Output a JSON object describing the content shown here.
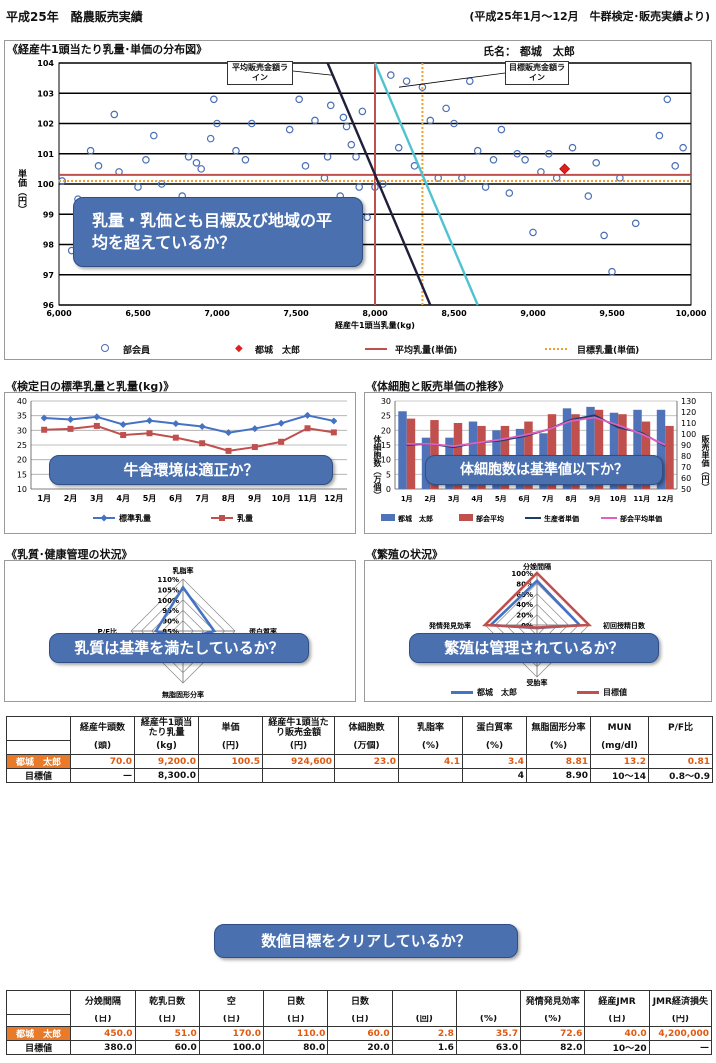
{
  "header": {
    "title": "平成25年　酪農販売実績",
    "source": "(平成25年1月～12月　牛群検定･販売実績より)"
  },
  "colors": {
    "callout_bg": "#4a70b0",
    "avg_line": "#c0504d",
    "target_line": "#f0a030",
    "avg_price_line": "#1f1f3a",
    "target_price_line": "#4fc3d0",
    "member_marker": "#4a6fb5",
    "user_marker": "#e02020",
    "user_row": "#e87a2a"
  },
  "scatter": {
    "heading": "《経産牛1頭当たり乳量･単価の分布図》",
    "name_label": "氏名：",
    "name_value": "都城　太郎",
    "ylabel": "単価（円）",
    "xlabel": "経産牛1頭当乳量(kg)",
    "callout": "乳量・乳価とも目標及び地域の平均を超えているか？",
    "annotation_avg": "平均販売金額ライン",
    "annotation_target": "目標販売金額ライン",
    "legend": {
      "members": "部会員",
      "user": "都城　太郎",
      "avg": "平均乳量(単価)",
      "target": "目標乳量(単価)"
    }
  },
  "chart_data": [
    {
      "type": "scatter",
      "title": "《経産牛1頭当たり乳量･単価の分布図》",
      "xlabel": "経産牛1頭当乳量(kg)",
      "ylabel": "単価（円）",
      "xlim": [
        6000,
        10000
      ],
      "ylim": [
        96,
        104
      ],
      "xticks": [
        "6,000",
        "6,500",
        "7,000",
        "7,500",
        "8,000",
        "8,500",
        "9,000",
        "9,500",
        "10,000"
      ],
      "yticks": [
        "96",
        "97",
        "98",
        "99",
        "100",
        "101",
        "102",
        "103",
        "104"
      ],
      "grid": true,
      "avg_milk_kg": 8000,
      "target_milk_kg": 8300,
      "avg_price_yen": 100.3,
      "target_price_yen": 100.1,
      "avg_revenue_line": [
        [
          7700,
          104
        ],
        [
          8350,
          96
        ]
      ],
      "target_revenue_line": [
        [
          8000,
          104
        ],
        [
          8650,
          96
        ]
      ],
      "user_point": [
        9200,
        100.5
      ],
      "members": [
        [
          6020,
          100.1
        ],
        [
          6080,
          97.8
        ],
        [
          6120,
          99.5
        ],
        [
          6200,
          101.1
        ],
        [
          6250,
          100.6
        ],
        [
          6300,
          98.3
        ],
        [
          6350,
          102.3
        ],
        [
          6380,
          100.4
        ],
        [
          6500,
          99.9
        ],
        [
          6550,
          100.8
        ],
        [
          6600,
          101.6
        ],
        [
          6650,
          100.0
        ],
        [
          6720,
          98.3
        ],
        [
          6780,
          99.6
        ],
        [
          6820,
          100.9
        ],
        [
          6870,
          100.7
        ],
        [
          6900,
          100.5
        ],
        [
          6960,
          101.5
        ],
        [
          6980,
          102.8
        ],
        [
          7000,
          102.0
        ],
        [
          7050,
          99.3
        ],
        [
          7120,
          101.1
        ],
        [
          7180,
          100.8
        ],
        [
          7220,
          102.0
        ],
        [
          7280,
          99.2
        ],
        [
          7350,
          98.4
        ],
        [
          7400,
          97.5
        ],
        [
          7460,
          101.8
        ],
        [
          7520,
          102.8
        ],
        [
          7560,
          100.6
        ],
        [
          7600,
          99.4
        ],
        [
          7620,
          102.1
        ],
        [
          7680,
          100.2
        ],
        [
          7700,
          100.9
        ],
        [
          7720,
          102.6
        ],
        [
          7780,
          99.6
        ],
        [
          7800,
          102.2
        ],
        [
          7820,
          101.9
        ],
        [
          7850,
          101.3
        ],
        [
          7880,
          100.9
        ],
        [
          7900,
          99.9
        ],
        [
          7920,
          102.4
        ],
        [
          7950,
          98.9
        ],
        [
          8000,
          99.9
        ],
        [
          8050,
          100.0
        ],
        [
          8100,
          103.6
        ],
        [
          8150,
          101.2
        ],
        [
          8200,
          103.4
        ],
        [
          8250,
          100.6
        ],
        [
          8300,
          103.2
        ],
        [
          8350,
          102.1
        ],
        [
          8400,
          100.2
        ],
        [
          8450,
          102.5
        ],
        [
          8500,
          102.0
        ],
        [
          8550,
          100.2
        ],
        [
          8600,
          103.4
        ],
        [
          8650,
          101.1
        ],
        [
          8700,
          99.9
        ],
        [
          8750,
          100.8
        ],
        [
          8800,
          101.8
        ],
        [
          8850,
          99.7
        ],
        [
          8900,
          101.0
        ],
        [
          8950,
          100.8
        ],
        [
          9000,
          98.4
        ],
        [
          9050,
          100.4
        ],
        [
          9100,
          101.0
        ],
        [
          9150,
          100.2
        ],
        [
          9250,
          101.2
        ],
        [
          9350,
          99.6
        ],
        [
          9400,
          100.7
        ],
        [
          9450,
          98.3
        ],
        [
          9500,
          97.1
        ],
        [
          9550,
          100.2
        ],
        [
          9650,
          98.7
        ],
        [
          9800,
          101.6
        ],
        [
          9850,
          102.8
        ],
        [
          9900,
          100.6
        ],
        [
          9950,
          101.2
        ]
      ]
    },
    {
      "type": "line",
      "title": "《検定日の標準乳量と乳量(kg)》",
      "categories": [
        "1月",
        "2月",
        "3月",
        "4月",
        "5月",
        "6月",
        "7月",
        "8月",
        "9月",
        "10月",
        "11月",
        "12月"
      ],
      "ylim": [
        10,
        40
      ],
      "yticks": [
        "10",
        "15",
        "20",
        "25",
        "30",
        "35",
        "40"
      ],
      "grid": true,
      "legend": "bottom",
      "series": [
        {
          "name": "標準乳量",
          "color": "#4472c4",
          "values": [
            34.2,
            33.7,
            34.6,
            32.0,
            33.3,
            32.3,
            31.3,
            29.2,
            30.6,
            32.4,
            35.1,
            33.2
          ]
        },
        {
          "name": "乳量",
          "color": "#c0504d",
          "values": [
            30.2,
            30.5,
            31.5,
            28.4,
            29.0,
            27.5,
            25.6,
            23.0,
            24.3,
            26.1,
            30.7,
            29.3
          ]
        }
      ],
      "callout": "牛舎環境は適正か？"
    },
    {
      "type": "bar",
      "title": "《体細胞と販売単価の推移》",
      "categories": [
        "1月",
        "2月",
        "3月",
        "4月",
        "5月",
        "6月",
        "7月",
        "8月",
        "9月",
        "10月",
        "11月",
        "12月"
      ],
      "ylabel": "体細胞数（万個）",
      "y2label": "販売単価（円）",
      "ylim": [
        0,
        30
      ],
      "y2lim": [
        50,
        130
      ],
      "yticks": [
        "0",
        "5",
        "10",
        "15",
        "20",
        "25",
        "30"
      ],
      "y2ticks": [
        "50",
        "60",
        "70",
        "80",
        "90",
        "100",
        "110",
        "120",
        "130"
      ],
      "legend": "bottom",
      "series": [
        {
          "name": "都城　太郎",
          "kind": "bar",
          "axis": "left",
          "color": "#4f72b8",
          "values": [
            26.5,
            17.5,
            17.5,
            23.0,
            20.0,
            20.5,
            19.0,
            27.5,
            28.0,
            26.0,
            27.0,
            27.0
          ]
        },
        {
          "name": "部会平均",
          "kind": "bar",
          "axis": "left",
          "color": "#c0504d",
          "values": [
            24.0,
            23.5,
            22.5,
            21.5,
            21.5,
            23.0,
            25.5,
            25.5,
            27.0,
            25.5,
            23.0,
            21.5
          ]
        },
        {
          "name": "生産者単価",
          "kind": "line",
          "axis": "right",
          "color": "#1f3b6a",
          "values": [
            90,
            91,
            88,
            92,
            94,
            98,
            104,
            113,
            117,
            106,
            101,
            89
          ]
        },
        {
          "name": "部会平均単価",
          "kind": "line",
          "axis": "right",
          "color": "#e060c0",
          "values": [
            91,
            91,
            89,
            92,
            95,
            99,
            104,
            112,
            115,
            108,
            100,
            90
          ]
        }
      ],
      "callout": "体細胞数は基準値以下か？"
    },
    {
      "type": "radar",
      "title": "《乳質･健康管理の状況》",
      "axes": [
        "乳脂率",
        "蛋白質率",
        "無脂固形分率",
        "P/F比"
      ],
      "rticks": [
        "85%",
        "90%",
        "95%",
        "100%",
        "105%",
        "110%"
      ],
      "rlim": [
        85,
        110
      ],
      "series": [
        {
          "name": "都城　太郎",
          "color": "#4472c4",
          "values": [
            106,
            100,
            89,
            98
          ]
        }
      ],
      "callout": "乳質は基準を満たしているか？"
    },
    {
      "type": "radar",
      "title": "《繁殖の状況》",
      "axes": [
        "分娩間隔",
        "初回授精日数",
        "受胎率",
        "発情発見効率"
      ],
      "rticks": [
        "0%",
        "20%",
        "40%",
        "60%",
        "80%",
        "100%"
      ],
      "rlim": [
        0,
        100
      ],
      "legend": "bottom",
      "series": [
        {
          "name": "都城　太郎",
          "color": "#4472c4",
          "values": [
            85,
            82,
            6,
            89
          ]
        },
        {
          "name": "目標値",
          "color": "#c0504d",
          "values": [
            100,
            100,
            5,
            100
          ]
        }
      ],
      "callout": "繁殖は管理されているか？"
    }
  ],
  "line_chart": {
    "heading": "《検定日の標準乳量と乳量(kg)》",
    "callout": "牛舎環境は適正か？",
    "legend": [
      "標準乳量",
      "乳量"
    ]
  },
  "bar_chart": {
    "heading": "《体細胞と販売単価の推移》",
    "ylabel": "体細胞数（万個）",
    "y2label": "販売単価（円）",
    "callout": "体細胞数は基準値以下か？",
    "legend": [
      "都城　太郎",
      "部会平均",
      "生産者単価",
      "部会平均単価"
    ]
  },
  "radar1": {
    "heading": "《乳質･健康管理の状況》",
    "callout": "乳質は基準を満たしているか？"
  },
  "radar2": {
    "heading": "《繁殖の状況》",
    "callout": "繁殖は管理されているか？",
    "legend": [
      "都城　太郎",
      "目標値"
    ]
  },
  "table1": {
    "headers": [
      {
        "top": "経産牛頭数",
        "unit": "(頭)"
      },
      {
        "top": "経産牛1頭当たり乳量",
        "unit": "(kg)"
      },
      {
        "top": "単価",
        "unit": "(円)"
      },
      {
        "top": "経産牛1頭当たり販売金額",
        "unit": "(円)"
      },
      {
        "top": "体細胞数",
        "unit": "(万個)"
      },
      {
        "top": "乳脂率",
        "unit": "(%)"
      },
      {
        "top": "蛋白質率",
        "unit": "(%)"
      },
      {
        "top": "無脂固形分率",
        "unit": "(%)"
      },
      {
        "top": "MUN",
        "unit": "(mg/dl)"
      },
      {
        "top": "P/F比",
        "unit": ""
      }
    ],
    "rows": [
      {
        "label": "都城　太郎",
        "cells": [
          "70.0",
          "9,200.0",
          "100.5",
          "924,600",
          "23.0",
          "4.1",
          "3.4",
          "8.81",
          "13.2",
          "0.81"
        ]
      },
      {
        "label": "目標値",
        "cells": [
          "—",
          "8,300.0",
          "",
          "",
          "",
          "",
          "4",
          "8.90",
          "10～14",
          "0.8～0.9"
        ]
      }
    ]
  },
  "table2": {
    "headers": [
      {
        "top": "分娩間隔",
        "unit": "(日)"
      },
      {
        "top": "乾乳日数",
        "unit": "(日)"
      },
      {
        "top": "空",
        "unit": "(日)"
      },
      {
        "top": "日数",
        "unit": "(日)"
      },
      {
        "top": "日数",
        "unit": "(日)"
      },
      {
        "top": "",
        "unit": "(回)"
      },
      {
        "top": "",
        "unit": "(%)"
      },
      {
        "top": "発情発見効率",
        "unit": "(%)"
      },
      {
        "top": "経産JMR",
        "unit": "(日)"
      },
      {
        "top": "JMR経済損失",
        "unit": "(円)"
      }
    ],
    "rows": [
      {
        "label": "都城　太郎",
        "cells": [
          "450.0",
          "51.0",
          "170.0",
          "110.0",
          "60.0",
          "2.8",
          "35.7",
          "72.6",
          "40.0",
          "4,200,000"
        ]
      },
      {
        "label": "目標値",
        "cells": [
          "380.0",
          "60.0",
          "100.0",
          "80.0",
          "20.0",
          "1.6",
          "63.0",
          "82.0",
          "10～20",
          "—"
        ]
      }
    ]
  },
  "table_callout": "数値目標をクリアしているか？"
}
